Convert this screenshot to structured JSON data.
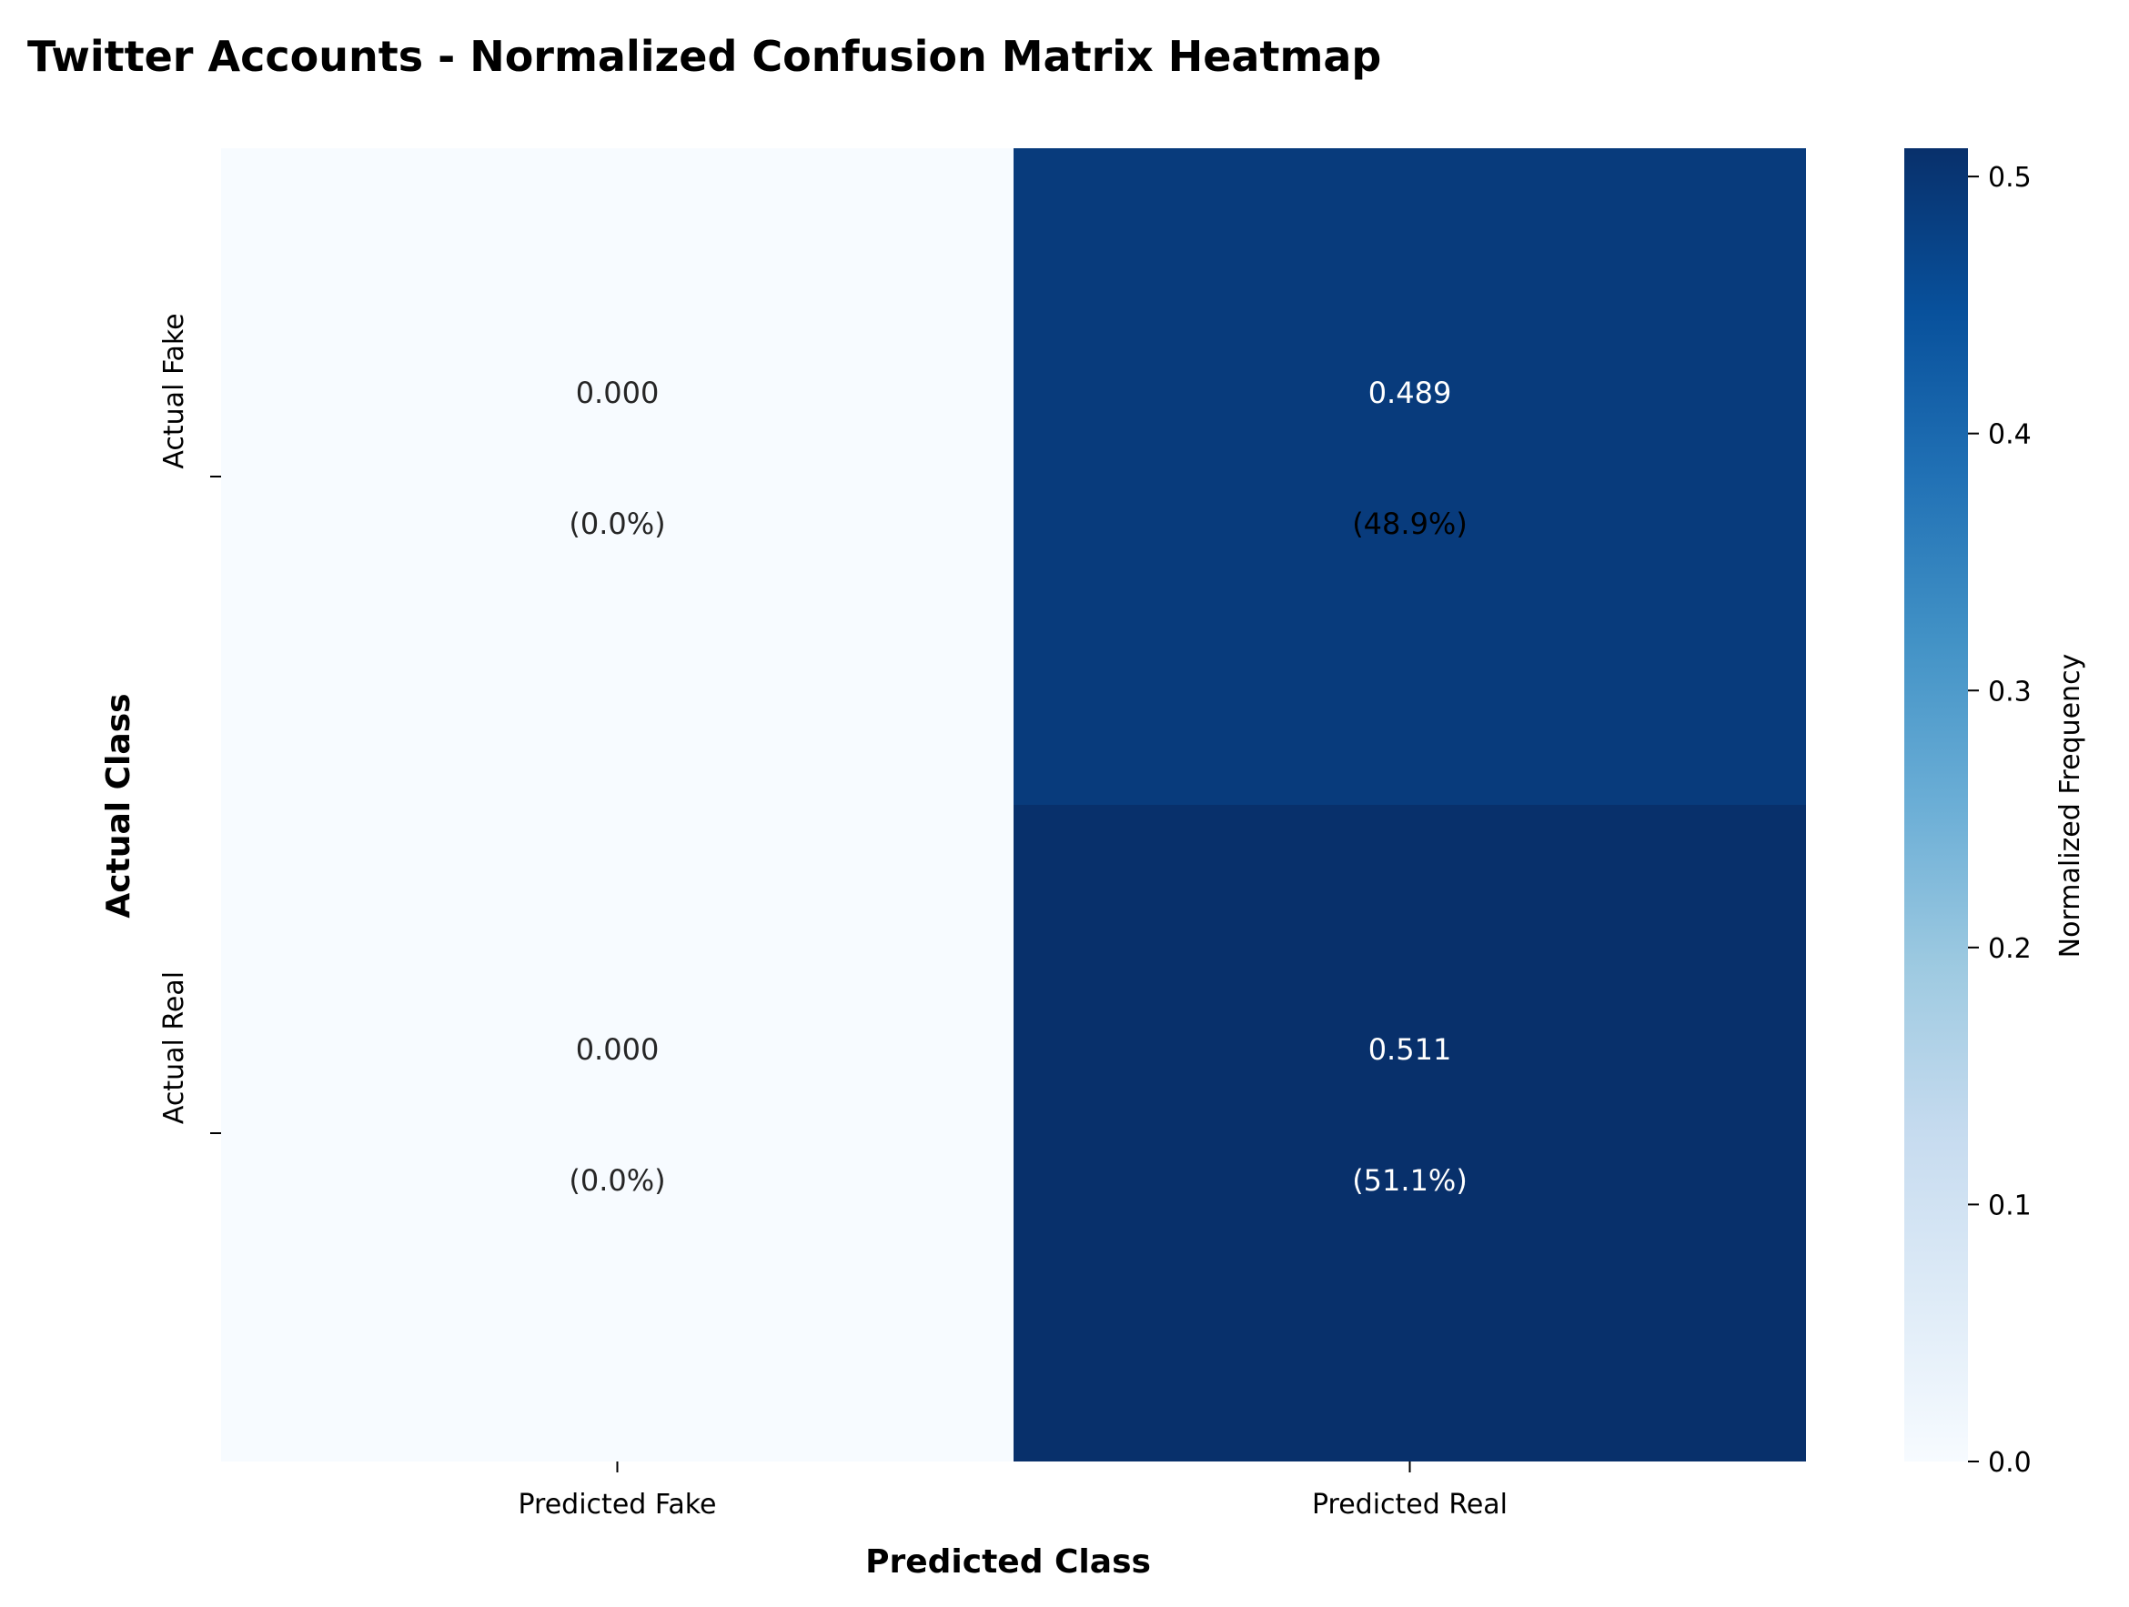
{
  "chart_data": {
    "type": "heatmap",
    "title": "Twitter Accounts - Normalized Confusion Matrix Heatmap",
    "xlabel": "Predicted Class",
    "ylabel": "Actual Class",
    "x_categories": [
      "Predicted Fake",
      "Predicted Real"
    ],
    "y_categories": [
      "Actual Fake",
      "Actual Real"
    ],
    "values": [
      [
        0.0,
        0.489
      ],
      [
        0.0,
        0.511
      ]
    ],
    "cell_labels": [
      [
        {
          "value": "0.000",
          "percent": "(0.0%)"
        },
        {
          "value": "0.489",
          "percent": "(48.9%)"
        }
      ],
      [
        {
          "value": "0.000",
          "percent": "(0.0%)"
        },
        {
          "value": "0.511",
          "percent": "(51.1%)"
        }
      ]
    ],
    "colormap": "Blues",
    "colorbar": {
      "label": "Normalized Frequency",
      "range": [
        0.0,
        0.511
      ],
      "ticks": [
        "0.0",
        "0.1",
        "0.2",
        "0.3",
        "0.4",
        "0.5"
      ],
      "tick_values": [
        0.0,
        0.1,
        0.2,
        0.3,
        0.4,
        0.5
      ]
    },
    "colors": {
      "low": "#f7fbff",
      "high": "#08306b",
      "text_dark": "#262626",
      "text_light": "#ffffff"
    }
  }
}
